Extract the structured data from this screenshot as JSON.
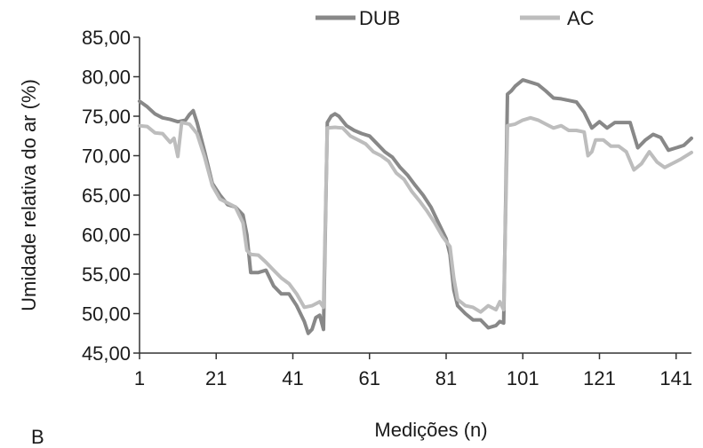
{
  "chart_data": {
    "type": "line",
    "xlabel": "Medições (n)",
    "ylabel": "Umidade relativa do ar (%)",
    "panel_label": "B",
    "ylim": [
      45,
      85
    ],
    "xlim": [
      1,
      145
    ],
    "x_ticks": [
      "1",
      "21",
      "41",
      "61",
      "81",
      "101",
      "121",
      "141"
    ],
    "y_ticks": [
      "45,00",
      "50,00",
      "55,00",
      "60,00",
      "65,00",
      "70,00",
      "75,00",
      "80,00",
      "85,00"
    ],
    "legend_position": "top",
    "series": [
      {
        "name": "DUB",
        "color": "#888888",
        "points": [
          [
            1,
            76.9
          ],
          [
            3,
            76.2
          ],
          [
            5,
            75.3
          ],
          [
            7,
            74.8
          ],
          [
            9,
            74.6
          ],
          [
            11,
            74.3
          ],
          [
            13,
            74.5
          ],
          [
            14,
            75.2
          ],
          [
            15,
            75.7
          ],
          [
            16,
            74.2
          ],
          [
            18,
            70.5
          ],
          [
            20,
            66.5
          ],
          [
            22,
            65
          ],
          [
            24,
            63.8
          ],
          [
            26,
            63.5
          ],
          [
            28,
            62.5
          ],
          [
            29,
            60
          ],
          [
            30,
            55.2
          ],
          [
            32,
            55.2
          ],
          [
            34,
            55.5
          ],
          [
            36,
            53.5
          ],
          [
            38,
            52.5
          ],
          [
            40,
            52.5
          ],
          [
            42,
            51
          ],
          [
            44,
            49
          ],
          [
            45,
            47.5
          ],
          [
            46,
            48
          ],
          [
            47,
            49.5
          ],
          [
            48,
            49.8
          ],
          [
            49,
            48
          ],
          [
            50,
            74.2
          ],
          [
            51,
            75
          ],
          [
            52,
            75.3
          ],
          [
            53,
            75
          ],
          [
            55,
            73.8
          ],
          [
            57,
            73.2
          ],
          [
            59,
            72.8
          ],
          [
            61,
            72.5
          ],
          [
            63,
            71.5
          ],
          [
            65,
            70.5
          ],
          [
            67,
            69.8
          ],
          [
            69,
            68.5
          ],
          [
            71,
            67.5
          ],
          [
            73,
            66.2
          ],
          [
            75,
            65
          ],
          [
            77,
            63.5
          ],
          [
            79,
            61.5
          ],
          [
            81,
            59.5
          ],
          [
            82,
            57.5
          ],
          [
            83,
            53
          ],
          [
            84,
            51
          ],
          [
            86,
            50
          ],
          [
            88,
            49.2
          ],
          [
            90,
            49.2
          ],
          [
            92,
            48.2
          ],
          [
            94,
            48.5
          ],
          [
            95,
            49
          ],
          [
            96,
            48.8
          ],
          [
            97,
            77.8
          ],
          [
            98,
            78.2
          ],
          [
            99,
            78.8
          ],
          [
            101,
            79.6
          ],
          [
            103,
            79.3
          ],
          [
            105,
            79
          ],
          [
            107,
            78.2
          ],
          [
            109,
            77.3
          ],
          [
            111,
            77.2
          ],
          [
            113,
            77
          ],
          [
            115,
            76.8
          ],
          [
            117,
            75.5
          ],
          [
            119,
            73.5
          ],
          [
            121,
            74.3
          ],
          [
            123,
            73.5
          ],
          [
            125,
            74.2
          ],
          [
            127,
            74.2
          ],
          [
            129,
            74.2
          ],
          [
            131,
            71
          ],
          [
            133,
            72
          ],
          [
            135,
            72.7
          ],
          [
            137,
            72.3
          ],
          [
            139,
            70.7
          ],
          [
            141,
            71
          ],
          [
            143,
            71.3
          ],
          [
            145,
            72.2
          ]
        ]
      },
      {
        "name": "AC",
        "color": "#bdbdbd",
        "points": [
          [
            1,
            73.8
          ],
          [
            3,
            73.7
          ],
          [
            5,
            72.9
          ],
          [
            7,
            72.8
          ],
          [
            9,
            71.7
          ],
          [
            10,
            72.2
          ],
          [
            11,
            69.9
          ],
          [
            12,
            74.2
          ],
          [
            14,
            74
          ],
          [
            16,
            72.8
          ],
          [
            18,
            69.8
          ],
          [
            20,
            66.2
          ],
          [
            22,
            64.5
          ],
          [
            24,
            64
          ],
          [
            26,
            63.5
          ],
          [
            28,
            61.5
          ],
          [
            29,
            58
          ],
          [
            30,
            57.5
          ],
          [
            32,
            57.4
          ],
          [
            34,
            56.5
          ],
          [
            36,
            55.5
          ],
          [
            38,
            54.5
          ],
          [
            40,
            53.8
          ],
          [
            42,
            52.5
          ],
          [
            44,
            50.8
          ],
          [
            46,
            51
          ],
          [
            48,
            51.5
          ],
          [
            49,
            50.8
          ],
          [
            50,
            73.5
          ],
          [
            52,
            73.6
          ],
          [
            54,
            73.5
          ],
          [
            56,
            72.5
          ],
          [
            58,
            72
          ],
          [
            60,
            71.5
          ],
          [
            62,
            70.5
          ],
          [
            64,
            70
          ],
          [
            66,
            69.3
          ],
          [
            68,
            67.8
          ],
          [
            70,
            67
          ],
          [
            72,
            65.5
          ],
          [
            74,
            64.3
          ],
          [
            76,
            63
          ],
          [
            78,
            61.5
          ],
          [
            80,
            59.8
          ],
          [
            82,
            58.5
          ],
          [
            83,
            54.5
          ],
          [
            84,
            51.8
          ],
          [
            86,
            51
          ],
          [
            88,
            50.8
          ],
          [
            90,
            50.2
          ],
          [
            92,
            51
          ],
          [
            94,
            50.5
          ],
          [
            95,
            51.5
          ],
          [
            96,
            50.5
          ],
          [
            97,
            73.8
          ],
          [
            99,
            74
          ],
          [
            101,
            74.5
          ],
          [
            103,
            74.8
          ],
          [
            105,
            74.5
          ],
          [
            107,
            74
          ],
          [
            109,
            73.5
          ],
          [
            111,
            73.8
          ],
          [
            113,
            73.2
          ],
          [
            115,
            73.2
          ],
          [
            117,
            73
          ],
          [
            118,
            70
          ],
          [
            119,
            70.5
          ],
          [
            120,
            72
          ],
          [
            122,
            72
          ],
          [
            124,
            71.2
          ],
          [
            126,
            71.2
          ],
          [
            128,
            70.5
          ],
          [
            130,
            68.2
          ],
          [
            132,
            69
          ],
          [
            134,
            70.5
          ],
          [
            136,
            69.2
          ],
          [
            138,
            68.5
          ],
          [
            140,
            69
          ],
          [
            142,
            69.5
          ],
          [
            145,
            70.4
          ]
        ]
      }
    ]
  }
}
